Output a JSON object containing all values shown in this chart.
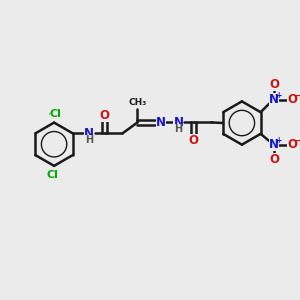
{
  "bg_color": "#ebebeb",
  "bond_color": "#1a1a1a",
  "bond_width": 1.8,
  "colors": {
    "N": "#1414cc",
    "O": "#cc1414",
    "Cl": "#00aa00",
    "H": "#555555",
    "C": "#1a1a1a"
  },
  "fs": 8.5,
  "fs_small": 7.0
}
